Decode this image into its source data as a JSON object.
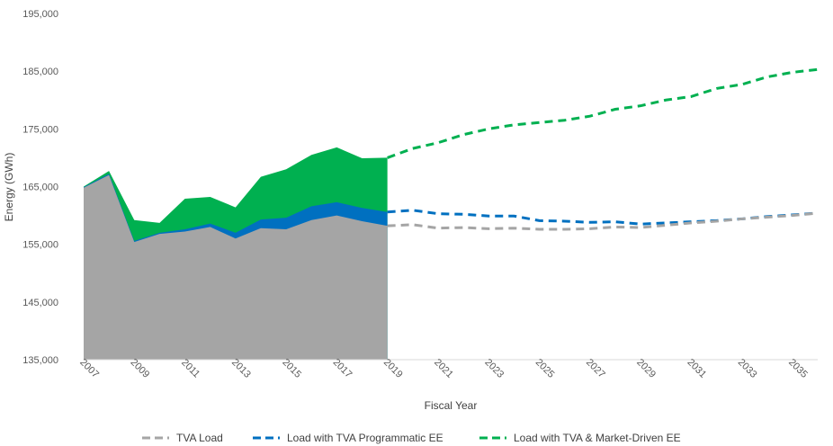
{
  "chart_data": {
    "type": "area",
    "title": "",
    "xlabel": "Fiscal Year",
    "ylabel": "Energy (GWh)",
    "ylim": [
      135000,
      195000
    ],
    "yticks": [
      135000,
      145000,
      155000,
      165000,
      175000,
      185000,
      195000
    ],
    "ytick_labels": [
      "135,000",
      "145,000",
      "155,000",
      "165,000",
      "175,000",
      "185,000",
      "195,000"
    ],
    "x": [
      2007,
      2008,
      2009,
      2010,
      2011,
      2012,
      2013,
      2014,
      2015,
      2016,
      2017,
      2018,
      2019,
      2020,
      2021,
      2022,
      2023,
      2024,
      2025,
      2026,
      2027,
      2028,
      2029,
      2030,
      2031,
      2032,
      2033,
      2034,
      2035,
      2036
    ],
    "xtick_labels": [
      "2007",
      "2009",
      "2011",
      "2013",
      "2015",
      "2017",
      "2019",
      "2021",
      "2023",
      "2025",
      "2027",
      "2029",
      "2031",
      "2033",
      "2035"
    ],
    "historical_end": 2019,
    "legend_position": "bottom",
    "series": [
      {
        "name": "TVA Load",
        "color": "#a5a5a5",
        "values": [
          164800,
          167000,
          155400,
          156800,
          157200,
          158000,
          156000,
          157800,
          157600,
          159200,
          160000,
          159000,
          158200,
          158400,
          157800,
          157900,
          157700,
          157800,
          157600,
          157600,
          157700,
          158000,
          157900,
          158300,
          158700,
          159000,
          159400,
          159700,
          160000,
          160400
        ]
      },
      {
        "name": "Load with TVA Programmatic EE",
        "color": "#0070c0",
        "values": [
          164900,
          167200,
          155600,
          157000,
          157600,
          158600,
          157000,
          159300,
          159600,
          161600,
          162300,
          161300,
          160600,
          160900,
          160300,
          160200,
          159900,
          159900,
          159100,
          159000,
          158800,
          158900,
          158500,
          158700,
          158900,
          159100,
          159400,
          159800,
          160100,
          160400
        ]
      },
      {
        "name": "Load with TVA & Market-Driven EE",
        "color": "#00b050",
        "values": [
          165000,
          167700,
          159200,
          158700,
          162900,
          163200,
          161400,
          166700,
          168000,
          170500,
          171800,
          169900,
          170000,
          171600,
          172600,
          174000,
          175000,
          175700,
          176100,
          176500,
          177200,
          178400,
          179000,
          180000,
          180600,
          182000,
          182700,
          184000,
          184800,
          185300
        ]
      }
    ]
  },
  "legend": {
    "items": [
      {
        "label": "TVA Load"
      },
      {
        "label": "Load with TVA Programmatic EE"
      },
      {
        "label": "Load with TVA & Market-Driven EE"
      }
    ]
  }
}
